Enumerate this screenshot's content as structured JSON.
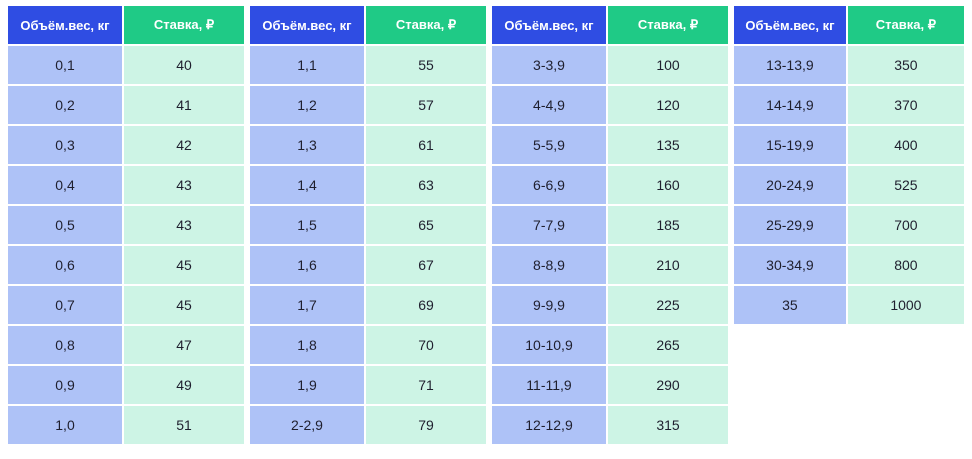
{
  "tables": [
    {
      "header": {
        "weight": "Объём.вес, кг",
        "rate": "Ставка, ₽"
      },
      "rows": [
        {
          "weight": "0,1",
          "rate": "40"
        },
        {
          "weight": "0,2",
          "rate": "41"
        },
        {
          "weight": "0,3",
          "rate": "42"
        },
        {
          "weight": "0,4",
          "rate": "43"
        },
        {
          "weight": "0,5",
          "rate": "43"
        },
        {
          "weight": "0,6",
          "rate": "45"
        },
        {
          "weight": "0,7",
          "rate": "45"
        },
        {
          "weight": "0,8",
          "rate": "47"
        },
        {
          "weight": "0,9",
          "rate": "49"
        },
        {
          "weight": "1,0",
          "rate": "51"
        }
      ]
    },
    {
      "header": {
        "weight": "Объём.вес, кг",
        "rate": "Ставка, ₽"
      },
      "rows": [
        {
          "weight": "1,1",
          "rate": "55"
        },
        {
          "weight": "1,2",
          "rate": "57"
        },
        {
          "weight": "1,3",
          "rate": "61"
        },
        {
          "weight": "1,4",
          "rate": "63"
        },
        {
          "weight": "1,5",
          "rate": "65"
        },
        {
          "weight": "1,6",
          "rate": "67"
        },
        {
          "weight": "1,7",
          "rate": "69"
        },
        {
          "weight": "1,8",
          "rate": "70"
        },
        {
          "weight": "1,9",
          "rate": "71"
        },
        {
          "weight": "2-2,9",
          "rate": "79"
        }
      ]
    },
    {
      "header": {
        "weight": "Объём.вес, кг",
        "rate": "Ставка, ₽"
      },
      "rows": [
        {
          "weight": "3-3,9",
          "rate": "100"
        },
        {
          "weight": "4-4,9",
          "rate": "120"
        },
        {
          "weight": "5-5,9",
          "rate": "135"
        },
        {
          "weight": "6-6,9",
          "rate": "160"
        },
        {
          "weight": "7-7,9",
          "rate": "185"
        },
        {
          "weight": "8-8,9",
          "rate": "210"
        },
        {
          "weight": "9-9,9",
          "rate": "225"
        },
        {
          "weight": "10-10,9",
          "rate": "265"
        },
        {
          "weight": "11-11,9",
          "rate": "290"
        },
        {
          "weight": "12-12,9",
          "rate": "315"
        }
      ]
    },
    {
      "header": {
        "weight": "Объём.вес, кг",
        "rate": "Ставка, ₽"
      },
      "rows": [
        {
          "weight": "13-13,9",
          "rate": "350"
        },
        {
          "weight": "14-14,9",
          "rate": "370"
        },
        {
          "weight": "15-19,9",
          "rate": "400"
        },
        {
          "weight": "20-24,9",
          "rate": "525"
        },
        {
          "weight": "25-29,9",
          "rate": "700"
        },
        {
          "weight": "30-34,9",
          "rate": "800"
        },
        {
          "weight": "35",
          "rate": "1000"
        }
      ]
    }
  ],
  "colors": {
    "header_weight": "#2f4de3",
    "header_rate": "#1fca86",
    "cell_weight": "#aec2f7",
    "cell_rate": "#cdf4e5"
  }
}
